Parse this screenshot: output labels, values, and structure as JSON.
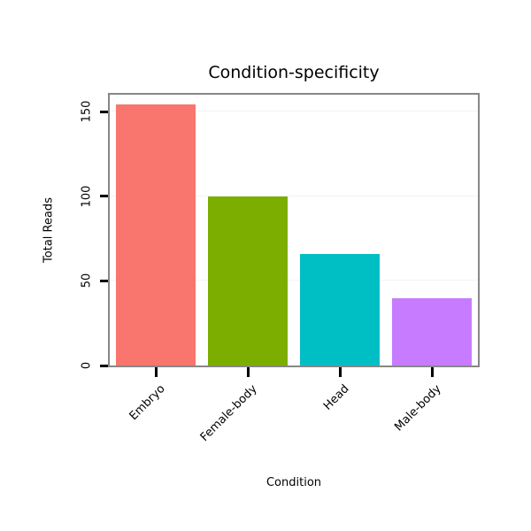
{
  "chart_data": {
    "type": "bar",
    "title": "Condition-specificity",
    "xlabel": "Condition",
    "ylabel": "Total Reads",
    "categories": [
      "Embryo",
      "Female-body",
      "Head",
      "Male-body"
    ],
    "values": [
      154,
      100,
      66,
      40
    ],
    "bar_colors": [
      "#F8766D",
      "#7CAE00",
      "#00BFC4",
      "#C77CFF"
    ],
    "yticks": [
      0,
      50,
      100,
      150
    ],
    "ylim": [
      0,
      160
    ],
    "grid": true,
    "legend_position": "none",
    "panel_border_color": "#878787",
    "tick_color": "#000000"
  }
}
